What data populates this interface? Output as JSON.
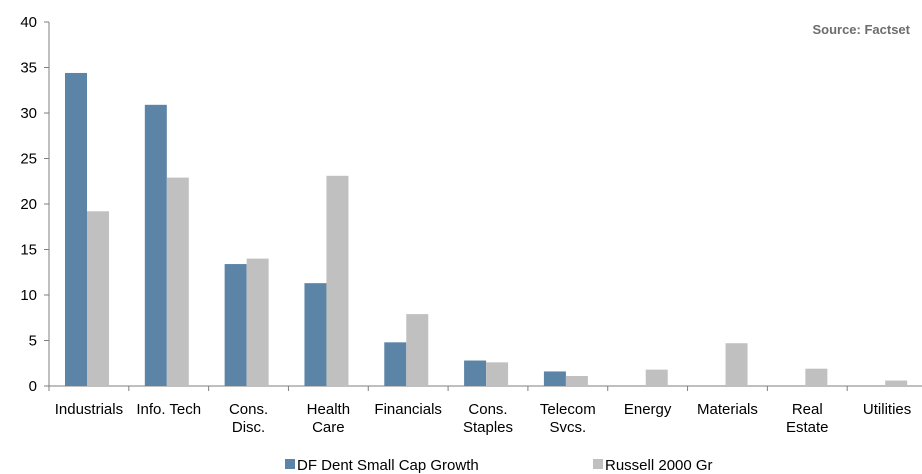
{
  "source": "Source: Factset",
  "colors": {
    "series_1": "#5b84a7",
    "series_2": "#c0c0c0",
    "axis": "#7f7f7f"
  },
  "chart_data": {
    "type": "bar",
    "categories": [
      [
        "Industrials"
      ],
      [
        "Info. Tech"
      ],
      [
        "Cons.",
        "Disc."
      ],
      [
        "Health",
        "Care"
      ],
      [
        "Financials"
      ],
      [
        "Cons.",
        "Staples"
      ],
      [
        "Telecom",
        "Svcs."
      ],
      [
        "Energy"
      ],
      [
        "Materials"
      ],
      [
        "Real",
        "Estate"
      ],
      [
        "Utilities"
      ]
    ],
    "series": [
      {
        "name": "DF Dent Small Cap Growth",
        "values": [
          34.4,
          30.9,
          13.4,
          11.3,
          4.8,
          2.8,
          1.6,
          0,
          0,
          0,
          0
        ]
      },
      {
        "name": "Russell 2000 Gr",
        "values": [
          19.2,
          22.9,
          14.0,
          23.1,
          7.9,
          2.6,
          1.1,
          1.8,
          4.7,
          1.9,
          0.6
        ]
      }
    ],
    "ylim": [
      0,
      40
    ],
    "yticks": [
      0,
      5,
      10,
      15,
      20,
      25,
      30,
      35,
      40
    ],
    "grid": false,
    "legend": "bottom"
  }
}
